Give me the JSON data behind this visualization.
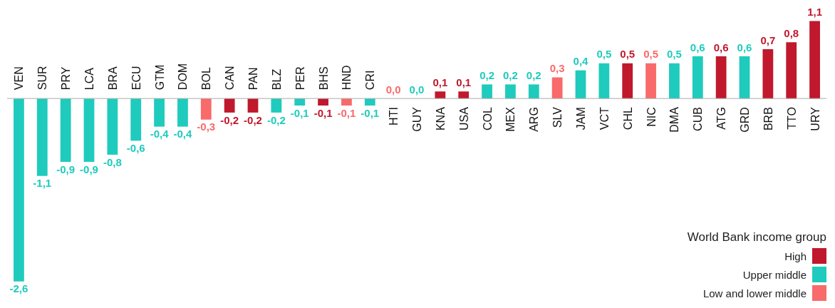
{
  "chart_data": {
    "type": "bar",
    "legend": "bottom right",
    "legend_title": "World Bank income group",
    "categories": [
      "VEN",
      "SUR",
      "PRY",
      "LCA",
      "BRA",
      "ECU",
      "GTM",
      "DOM",
      "BOL",
      "CAN",
      "PAN",
      "BLZ",
      "PER",
      "BHS",
      "HND",
      "CRI",
      "HTI",
      "GUY",
      "KNA",
      "USA",
      "COL",
      "MEX",
      "ARG",
      "SLV",
      "JAM",
      "VCT",
      "CHL",
      "NIC",
      "DMA",
      "CUB",
      "ATG",
      "GRD",
      "BRB",
      "TTO",
      "URY"
    ],
    "series": [
      {
        "name": "High",
        "color": "#c0182c",
        "values": [
          null,
          null,
          null,
          null,
          null,
          null,
          null,
          null,
          null,
          -0.2,
          -0.2,
          null,
          null,
          -0.1,
          null,
          null,
          null,
          null,
          0.1,
          0.1,
          null,
          null,
          null,
          null,
          null,
          null,
          0.5,
          null,
          null,
          null,
          0.6,
          null,
          0.7,
          0.8,
          1.1
        ],
        "value_labels": [
          null,
          null,
          null,
          null,
          null,
          null,
          null,
          null,
          null,
          "-0,2",
          "-0,2",
          null,
          null,
          "-0,1",
          null,
          null,
          null,
          null,
          "0,1",
          "0,1",
          null,
          null,
          null,
          null,
          null,
          null,
          "0,5",
          null,
          null,
          null,
          "0,6",
          null,
          "0,7",
          "0,8",
          "1,1"
        ]
      },
      {
        "name": "Upper middle",
        "color": "#1fcbbd",
        "values": [
          -2.6,
          -1.1,
          -0.9,
          -0.9,
          -0.8,
          -0.6,
          -0.4,
          -0.4,
          null,
          null,
          null,
          -0.2,
          -0.1,
          null,
          null,
          -0.1,
          null,
          0.0,
          null,
          null,
          0.2,
          0.2,
          0.2,
          null,
          0.4,
          0.5,
          null,
          null,
          0.5,
          0.6,
          null,
          0.6,
          null,
          null,
          null
        ],
        "value_labels": [
          "-2,6",
          "-1,1",
          "-0,9",
          "-0,9",
          "-0,8",
          "-0,6",
          "-0,4",
          "-0,4",
          null,
          null,
          null,
          "-0,2",
          "-0,1",
          null,
          null,
          "-0,1",
          null,
          "0,0",
          null,
          null,
          "0,2",
          "0,2",
          "0,2",
          null,
          "0,4",
          "0,5",
          null,
          null,
          "0,5",
          "0,6",
          null,
          "0,6",
          null,
          null,
          null
        ]
      },
      {
        "name": "Low and lower middle",
        "color": "#f96a6a",
        "values": [
          null,
          null,
          null,
          null,
          null,
          null,
          null,
          null,
          -0.3,
          null,
          null,
          null,
          null,
          null,
          -0.1,
          null,
          0.0,
          null,
          null,
          null,
          null,
          null,
          null,
          0.3,
          null,
          null,
          null,
          0.5,
          null,
          null,
          null,
          null,
          null,
          null,
          null
        ],
        "value_labels": [
          null,
          null,
          null,
          null,
          null,
          null,
          null,
          null,
          "-0,3",
          null,
          null,
          null,
          null,
          null,
          "-0,1",
          null,
          "0,0",
          null,
          null,
          null,
          null,
          null,
          null,
          "0,3",
          null,
          null,
          null,
          "0,5",
          null,
          null,
          null,
          null,
          null,
          null,
          null
        ]
      }
    ]
  }
}
